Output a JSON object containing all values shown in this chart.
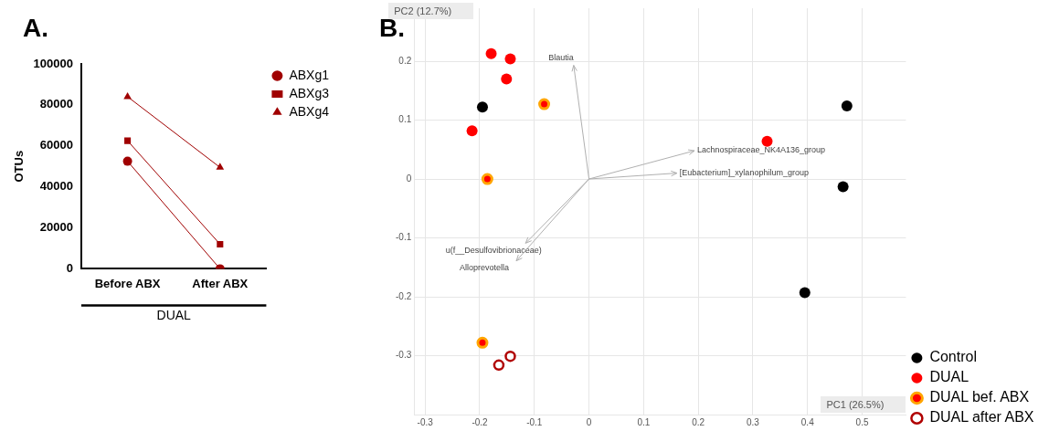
{
  "chart_data": [
    {
      "type": "line",
      "title": "A.",
      "ylabel": "OTUs",
      "categories": [
        "Before ABX",
        "After ABX"
      ],
      "ylim": [
        0,
        100000
      ],
      "yticks": [
        0,
        20000,
        40000,
        60000,
        80000,
        100000
      ],
      "grid": false,
      "legend": "top right",
      "annotations": [
        "DUAL"
      ],
      "series": [
        {
          "name": "ABXg1",
          "color": "#a00000",
          "marker": "circle",
          "values": [
            52500,
            0
          ]
        },
        {
          "name": "ABXg3",
          "color": "#a00000",
          "marker": "square",
          "values": [
            62500,
            12000
          ]
        },
        {
          "name": "ABXg4",
          "color": "#a00000",
          "marker": "triangle",
          "values": [
            84000,
            49500
          ]
        }
      ]
    },
    {
      "type": "scatter",
      "title": "B.",
      "xlabel": "PC1 (26.5%)",
      "ylabel": "PC2 (12.7%)",
      "annotations": [
        "Blautia",
        "Lachnospiraceae_NK4A136_group",
        "[Eubacterium]_xylanophilum_group",
        "u(f__Desulfovibrionaceae)",
        "Alloprevotella"
      ],
      "xlim": [
        -0.32,
        0.58
      ],
      "ylim": [
        -0.4,
        0.29
      ],
      "xticks": [
        -0.3,
        -0.2,
        -0.1,
        0,
        0.1,
        0.2,
        0.3,
        0.4,
        0.5
      ],
      "yticks": [
        -0.3,
        -0.2,
        -0.1,
        0,
        0.1,
        0.2
      ],
      "grid": true,
      "legend": "bottom right",
      "marker": "circle",
      "series": [
        {
          "name": "Control",
          "color": "#000000",
          "x": [
            -0.195,
            0.472,
            0.465,
            0.395
          ],
          "values": [
            0.122,
            0.124,
            -0.013,
            -0.193
          ]
        },
        {
          "name": "DUAL",
          "color": "#ff0000",
          "x": [
            -0.179,
            -0.144,
            -0.151,
            -0.214,
            0.326
          ],
          "values": [
            0.213,
            0.204,
            0.17,
            0.082,
            0.064
          ]
        },
        {
          "name": "DUAL bef. ABX",
          "color": "#ffa500",
          "x": [
            -0.082,
            -0.186,
            -0.195
          ],
          "values": [
            0.127,
            0,
            -0.278
          ]
        },
        {
          "name": "DUAL after ABX",
          "color": "#b00000",
          "x": [
            -0.165,
            -0.144
          ],
          "values": [
            -0.316,
            -0.301
          ]
        }
      ]
    }
  ]
}
